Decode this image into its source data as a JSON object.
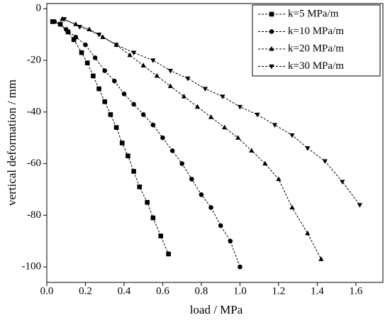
{
  "chart_data": {
    "type": "line",
    "xlabel": "load / MPa",
    "ylabel": "vertical deformation / mm",
    "xlim": [
      0,
      1.74
    ],
    "ylim": [
      -106,
      2
    ],
    "xticks": [
      {
        "value": 0,
        "label": "0.0"
      },
      0.2,
      0.4,
      0.6,
      0.8,
      {
        "value": 1,
        "label": "1.0"
      },
      1.2,
      1.4,
      1.6
    ],
    "yticks": [
      0,
      -20,
      -40,
      -60,
      -80,
      -100
    ],
    "legend": "upper right",
    "series": [
      {
        "name": "k=5 MPa/m",
        "color": "#000000",
        "marker": "square",
        "x": [
          0.03,
          0.07,
          0.11,
          0.14,
          0.18,
          0.21,
          0.24,
          0.27,
          0.3,
          0.33,
          0.36,
          0.39,
          0.42,
          0.45,
          0.48,
          0.52,
          0.55,
          0.59,
          0.63
        ],
        "values": [
          -5,
          -6,
          -9,
          -12,
          -17,
          -21,
          -26,
          -31,
          -36,
          -41,
          -46,
          -52,
          -57,
          -63,
          -69,
          -75,
          -81,
          -88,
          -95
        ]
      },
      {
        "name": "k=10 MPa/m",
        "color": "#000000",
        "marker": "circle",
        "x": [
          0.04,
          0.1,
          0.15,
          0.2,
          0.25,
          0.3,
          0.35,
          0.4,
          0.45,
          0.5,
          0.55,
          0.6,
          0.65,
          0.7,
          0.75,
          0.8,
          0.85,
          0.9,
          0.95,
          1.0
        ],
        "values": [
          -5,
          -8,
          -11,
          -14,
          -19,
          -24,
          -28,
          -33,
          -37,
          -41,
          -45,
          -50,
          -55,
          -60,
          -66,
          -72,
          -77,
          -84,
          -90,
          -100
        ]
      },
      {
        "name": "k=20 MPa/m",
        "color": "#000000",
        "marker": "triangle-up",
        "x": [
          0.08,
          0.15,
          0.22,
          0.29,
          0.36,
          0.43,
          0.5,
          0.57,
          0.64,
          0.71,
          0.78,
          0.85,
          0.92,
          0.99,
          1.06,
          1.13,
          1.2,
          1.27,
          1.35,
          1.42
        ],
        "values": [
          -4,
          -6,
          -8,
          -11,
          -14,
          -18,
          -22,
          -26,
          -30,
          -34,
          -38,
          -42,
          -46,
          -50,
          -55,
          -60,
          -66,
          -77,
          -87,
          -97
        ]
      },
      {
        "name": "k=30 MPa/m",
        "color": "#000000",
        "marker": "triangle-down",
        "x": [
          0.09,
          0.17,
          0.27,
          0.36,
          0.45,
          0.55,
          0.64,
          0.73,
          0.82,
          0.91,
          1.0,
          1.09,
          1.18,
          1.27,
          1.35,
          1.44,
          1.53,
          1.62
        ],
        "values": [
          -4,
          -7,
          -10,
          -14,
          -17,
          -20,
          -24,
          -27,
          -31,
          -34,
          -38,
          -41,
          -45,
          -49,
          -54,
          -59,
          -67,
          -76
        ]
      }
    ]
  }
}
